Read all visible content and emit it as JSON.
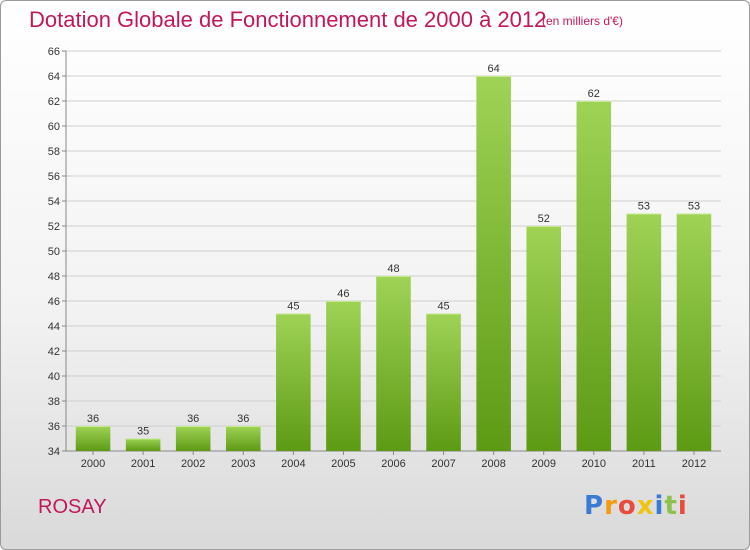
{
  "title": "Dotation Globale de Fonctionnement de 2000 à 2012",
  "subtitle": "(en milliers d'€)",
  "commune": "ROSAY",
  "logo": {
    "text": "Proxiti",
    "letters": [
      "P",
      "r",
      "o",
      "x",
      "i",
      "t",
      "i"
    ],
    "colors": [
      "#3a7bd5",
      "#f39c12",
      "#e74c3c",
      "#f1c40f",
      "#3a7bd5",
      "#8bc34a",
      "#e74c3c"
    ]
  },
  "colors": {
    "bar_top": "#9fd356",
    "bar_bottom": "#5d9a14",
    "title": "#c2185b",
    "grid": "#cfcfcf"
  },
  "chart_data": {
    "type": "bar",
    "categories": [
      "2000",
      "2001",
      "2002",
      "2003",
      "2004",
      "2005",
      "2006",
      "2007",
      "2008",
      "2009",
      "2010",
      "2011",
      "2012"
    ],
    "values": [
      36,
      35,
      36,
      36,
      45,
      46,
      48,
      45,
      64,
      52,
      62,
      53,
      53
    ],
    "title": "Dotation Globale de Fonctionnement de 2000 à 2012",
    "subtitle": "(en milliers d'€)",
    "xlabel": "",
    "ylabel": "",
    "ylim": [
      34,
      66
    ],
    "yticks": [
      34,
      36,
      38,
      40,
      42,
      44,
      46,
      48,
      50,
      52,
      54,
      56,
      58,
      60,
      62,
      64,
      66
    ],
    "grid": true,
    "legend": "none"
  }
}
